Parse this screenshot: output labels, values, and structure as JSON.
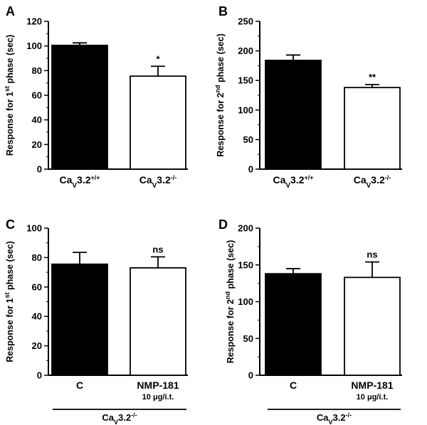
{
  "chart_data": [
    {
      "panel": "A",
      "type": "bar",
      "ylabel": "Response for 1st phase (sec)",
      "ylabel_parts": {
        "pre": "Response for 1",
        "sup": "st",
        "post": " phase (sec)"
      },
      "ylim": [
        0,
        120
      ],
      "yticks": [
        0,
        20,
        40,
        60,
        80,
        100,
        120
      ],
      "categories": [
        {
          "base": "Ca",
          "sub": "V",
          "main": "3.2",
          "sup": "+/+",
          "subline": ""
        },
        {
          "base": "Ca",
          "sub": "V",
          "main": "3.2",
          "sup": "-/-",
          "subline": ""
        }
      ],
      "values": [
        100.5,
        75.5
      ],
      "errors": [
        2,
        8
      ],
      "fills": [
        "#000000",
        "#ffffff"
      ],
      "significance": [
        "",
        "*"
      ],
      "group_label": null
    },
    {
      "panel": "B",
      "type": "bar",
      "ylabel": "Response for 2nd phase (sec)",
      "ylabel_parts": {
        "pre": "Response for 2",
        "sup": "nd",
        "post": " phase (sec)"
      },
      "ylim": [
        0,
        250
      ],
      "yticks": [
        0,
        50,
        100,
        150,
        200,
        250
      ],
      "categories": [
        {
          "base": "Ca",
          "sub": "V",
          "main": "3.2",
          "sup": "+/+",
          "subline": ""
        },
        {
          "base": "Ca",
          "sub": "V",
          "main": "3.2",
          "sup": "-/-",
          "subline": ""
        }
      ],
      "values": [
        184,
        138
      ],
      "errors": [
        9,
        5
      ],
      "fills": [
        "#000000",
        "#ffffff"
      ],
      "significance": [
        "",
        "**"
      ],
      "group_label": null
    },
    {
      "panel": "C",
      "type": "bar",
      "ylabel": "Response for 1st phase (sec)",
      "ylabel_parts": {
        "pre": "Response for 1",
        "sup": "st",
        "post": " phase (sec)"
      },
      "ylim": [
        0,
        100
      ],
      "yticks": [
        0,
        20,
        40,
        60,
        80,
        100
      ],
      "categories": [
        {
          "base": "C",
          "sub": "",
          "main": "",
          "sup": "",
          "subline": ""
        },
        {
          "base": "NMP-181",
          "sub": "",
          "main": "",
          "sup": "",
          "subline": "10 μg/i.t."
        }
      ],
      "values": [
        75.5,
        73
      ],
      "errors": [
        8,
        7.5
      ],
      "fills": [
        "#000000",
        "#ffffff"
      ],
      "significance": [
        "",
        "ns"
      ],
      "group_label": {
        "base": "Ca",
        "sub": "V",
        "main": "3.2",
        "sup": "-/-"
      }
    },
    {
      "panel": "D",
      "type": "bar",
      "ylabel": "Response for 2nd phase (sec)",
      "ylabel_parts": {
        "pre": "Response for 2",
        "sup": "nd",
        "post": " phase (sec)"
      },
      "ylim": [
        0,
        200
      ],
      "yticks": [
        0,
        50,
        100,
        150,
        200
      ],
      "categories": [
        {
          "base": "C",
          "sub": "",
          "main": "",
          "sup": "",
          "subline": ""
        },
        {
          "base": "NMP-181",
          "sub": "",
          "main": "",
          "sup": "",
          "subline": "10 μg/i.t."
        }
      ],
      "values": [
        138,
        133
      ],
      "errors": [
        7,
        21
      ],
      "fills": [
        "#000000",
        "#ffffff"
      ],
      "significance": [
        "",
        "ns"
      ],
      "group_label": {
        "base": "Ca",
        "sub": "V",
        "main": "3.2",
        "sup": "-/-"
      }
    }
  ]
}
